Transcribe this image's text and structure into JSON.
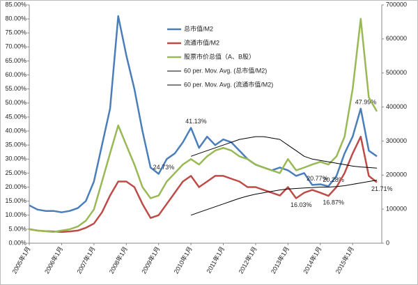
{
  "chart_data": {
    "type": "line",
    "categories": [
      "2005年1月",
      null,
      null,
      null,
      "2006年1月",
      null,
      null,
      null,
      "2007年1月",
      null,
      null,
      null,
      "2008年1月",
      null,
      null,
      null,
      "2009年1月",
      null,
      null,
      null,
      "2010年1月",
      null,
      null,
      null,
      "2011年1月",
      null,
      null,
      null,
      "2012年1月",
      null,
      null,
      null,
      "2013年1月",
      null,
      null,
      null,
      "2014年1月",
      null,
      null,
      null,
      "2015年1月",
      null,
      null,
      null
    ],
    "ylim": [
      0,
      85
    ],
    "yticks": [
      {
        "value": 0,
        "label": "0.00%"
      },
      {
        "value": 5,
        "label": "5.00%"
      },
      {
        "value": 10,
        "label": "10.00%"
      },
      {
        "value": 15,
        "label": "15.00%"
      },
      {
        "value": 20,
        "label": "20.00%"
      },
      {
        "value": 25,
        "label": "25.00%"
      },
      {
        "value": 30,
        "label": "30.00%"
      },
      {
        "value": 35,
        "label": "35.00%"
      },
      {
        "value": 40,
        "label": "40.00%"
      },
      {
        "value": 45,
        "label": "45.00%"
      },
      {
        "value": 50,
        "label": "50.00%"
      },
      {
        "value": 55,
        "label": "55.00%"
      },
      {
        "value": 60,
        "label": "60.00%"
      },
      {
        "value": 65,
        "label": "65.00%"
      },
      {
        "value": 70,
        "label": "70.00%"
      },
      {
        "value": 75,
        "label": "75.00%"
      },
      {
        "value": 80,
        "label": "80.00%"
      },
      {
        "value": 85,
        "label": "85.00%"
      }
    ],
    "y2lim": [
      0,
      700000
    ],
    "y2ticks": [
      0,
      100000,
      200000,
      300000,
      400000,
      500000,
      600000,
      700000
    ],
    "grid": false,
    "legend": "top-center",
    "series": [
      {
        "name": "总市值/M2",
        "color": "#4a7ebb",
        "width": 2.5,
        "values": [
          13.5,
          12,
          11.5,
          11.5,
          11,
          11.5,
          12.5,
          15,
          22,
          35,
          48,
          81,
          67,
          55,
          40,
          27,
          24.73,
          30,
          32,
          36,
          41.13,
          34,
          38,
          35,
          37,
          36,
          33,
          30,
          28,
          27,
          26,
          27,
          26,
          24,
          25,
          20.77,
          21,
          20.28,
          24,
          32,
          38,
          47.99,
          33,
          31
        ],
        "value_labels": [
          null,
          null,
          null,
          null,
          null,
          null,
          null,
          null,
          null,
          null,
          null,
          null,
          null,
          null,
          null,
          null,
          "24.73%",
          null,
          null,
          null,
          "41.13%",
          null,
          null,
          null,
          null,
          null,
          null,
          null,
          null,
          null,
          null,
          null,
          null,
          null,
          null,
          "20.77%",
          null,
          "20.28%",
          null,
          null,
          null,
          "47.99%",
          null,
          null
        ]
      },
      {
        "name": "流通市值/M2",
        "color": "#be4b48",
        "width": 2.5,
        "values": [
          5,
          4.5,
          4.3,
          4.2,
          4,
          4.2,
          4.5,
          5.5,
          7,
          11,
          17,
          22,
          22,
          20,
          14,
          9,
          10,
          14,
          18,
          22,
          24,
          20,
          22,
          24,
          24,
          23,
          22,
          20,
          20,
          19,
          18,
          17,
          20,
          16.03,
          18,
          19,
          18,
          16.87,
          20,
          25,
          32,
          38,
          24,
          21.71
        ],
        "value_labels": [
          null,
          null,
          null,
          null,
          null,
          null,
          null,
          null,
          null,
          null,
          null,
          null,
          null,
          null,
          null,
          null,
          null,
          null,
          null,
          null,
          null,
          null,
          null,
          null,
          null,
          null,
          null,
          null,
          null,
          null,
          null,
          null,
          null,
          "16.03%",
          null,
          null,
          null,
          "16.87%",
          null,
          null,
          null,
          null,
          null,
          "21.71%"
        ]
      },
      {
        "name": "股票市价总值（A、B股）",
        "color": "#98b954",
        "width": 2.5,
        "axis": "y2",
        "values": [
          41000,
          37000,
          35000,
          33000,
          37000,
          41000,
          49000,
          66000,
          99000,
          181000,
          264000,
          346000,
          288000,
          231000,
          165000,
          132000,
          140000,
          181000,
          206000,
          231000,
          247000,
          231000,
          255000,
          272000,
          280000,
          272000,
          255000,
          247000,
          231000,
          222000,
          214000,
          206000,
          247000,
          214000,
          222000,
          231000,
          239000,
          231000,
          255000,
          313000,
          453000,
          659000,
          428000,
          387000
        ]
      },
      {
        "name": "60 per. Mov. Avg. (总市值/M2)",
        "color": "#000000",
        "width": 1,
        "values": [
          null,
          null,
          null,
          null,
          null,
          null,
          null,
          null,
          null,
          null,
          null,
          null,
          null,
          null,
          null,
          null,
          null,
          null,
          null,
          null,
          31,
          32,
          33,
          34,
          35,
          36,
          37,
          37.5,
          38,
          38,
          37.5,
          37,
          35,
          33,
          31,
          30,
          29.5,
          29,
          28.5,
          28,
          27.5,
          27.2,
          27,
          26.8
        ]
      },
      {
        "name": "60 per. Mov. Avg. (流通市值/M2)",
        "color": "#000000",
        "width": 1,
        "values": [
          null,
          null,
          null,
          null,
          null,
          null,
          null,
          null,
          null,
          null,
          null,
          null,
          null,
          null,
          null,
          null,
          null,
          null,
          null,
          null,
          10,
          11,
          12,
          13,
          14,
          15,
          16,
          16.8,
          17.5,
          18,
          18.5,
          19,
          19.3,
          19.5,
          19.7,
          19.8,
          20,
          20,
          20.2,
          20.5,
          21,
          21.5,
          22,
          22.5
        ]
      }
    ]
  }
}
